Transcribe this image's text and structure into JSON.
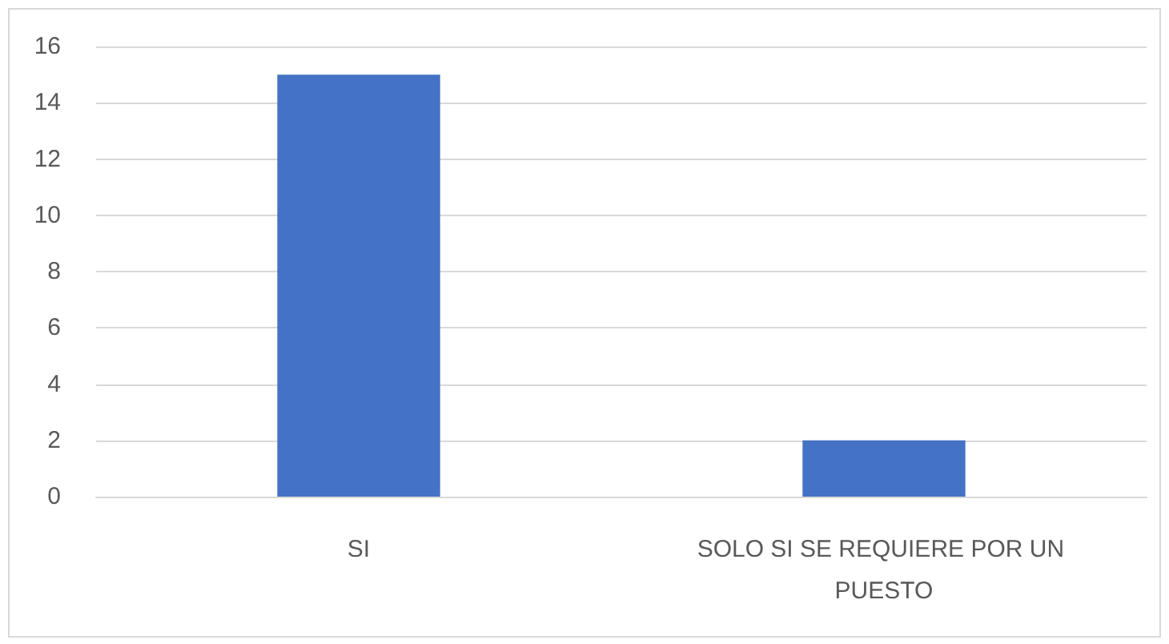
{
  "chart_data": {
    "type": "bar",
    "categories": [
      "SI",
      "SOLO SI SE REQUIERE POR UN PUESTO"
    ],
    "values": [
      15,
      2
    ],
    "color": "#4472c4",
    "ylim": [
      0,
      16
    ],
    "yticks": [
      0,
      2,
      4,
      6,
      8,
      10,
      12,
      14,
      16
    ],
    "grid": "y"
  }
}
